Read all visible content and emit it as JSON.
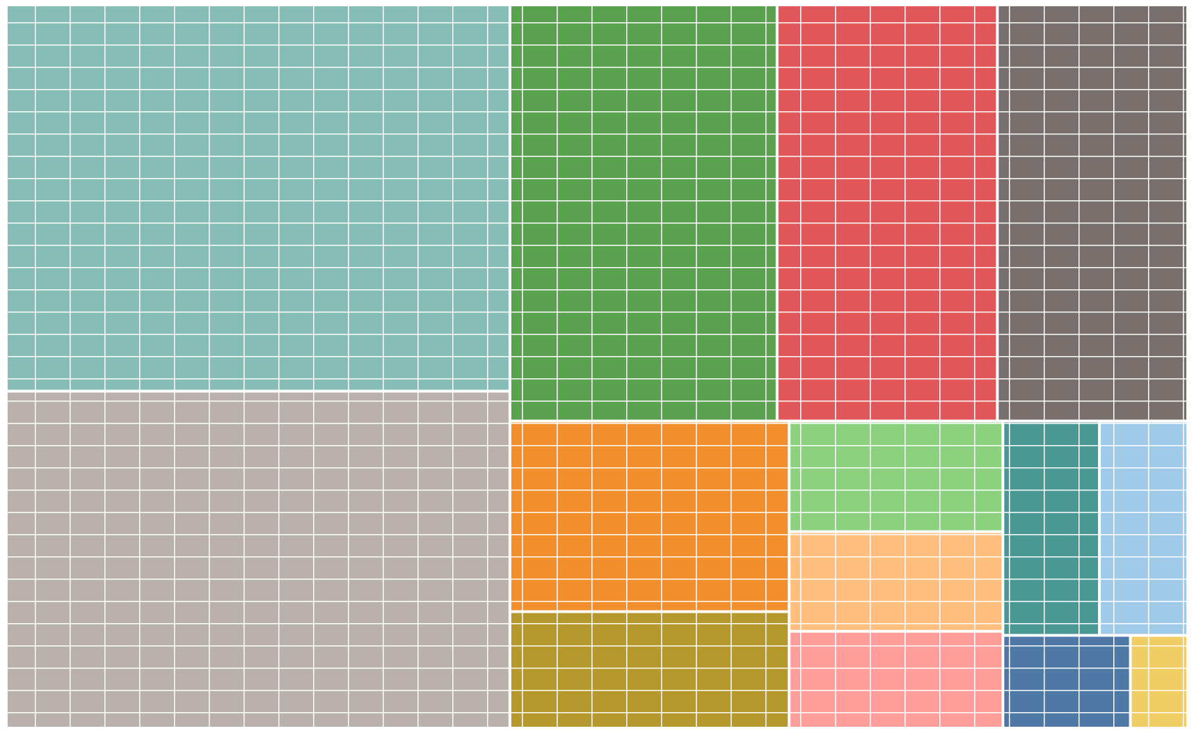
{
  "chart_data": {
    "type": "treemap",
    "values": [
      329,
      287,
      188,
      155,
      134,
      90,
      55,
      40,
      36,
      35,
      35,
      32,
      20,
      9
    ],
    "colors": [
      "#86bcb6",
      "#bab0ac",
      "#59a14f",
      "#e15759",
      "#79706e",
      "#f28e2b",
      "#b6992d",
      "#8cd17d",
      "#ffbe7d",
      "#ff9d9a",
      "#499894",
      "#a0cbe8",
      "#4e79a7",
      "#f1ce63"
    ]
  }
}
